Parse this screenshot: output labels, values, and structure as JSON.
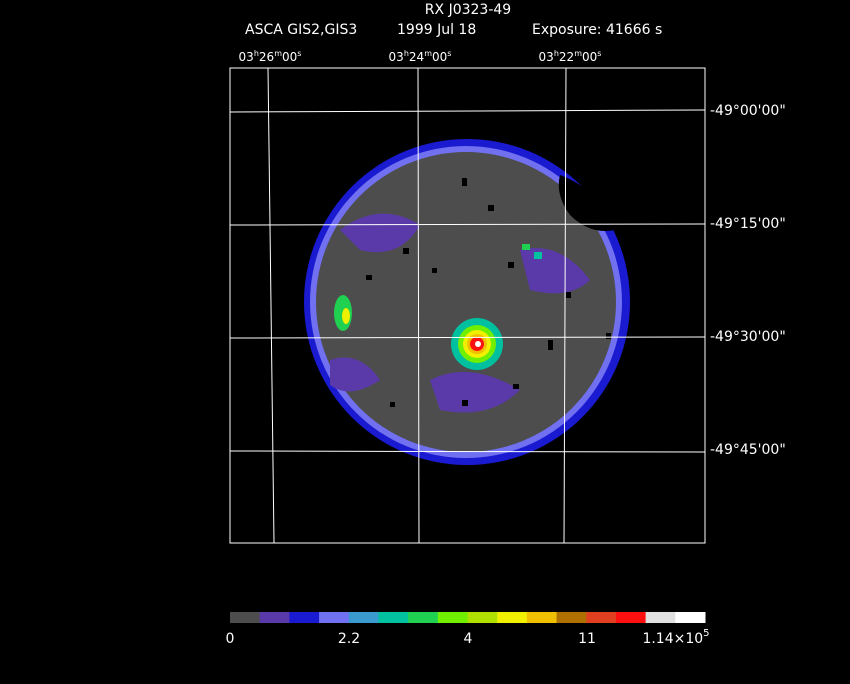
{
  "header": {
    "title": "RX J0323-49",
    "instrument": "ASCA GIS2,GIS3",
    "date": "1999 Jul 18",
    "exposure": "Exposure: 41666 s"
  },
  "ra_labels": [
    [
      "03",
      "h",
      "26",
      "m",
      "00",
      "s"
    ],
    [
      "03",
      "h",
      "24",
      "m",
      "00",
      "s"
    ],
    [
      "03",
      "h",
      "22",
      "m",
      "00",
      "s"
    ]
  ],
  "dec_labels": [
    "-49°00'00\"",
    "-49°15'00\"",
    "-49°30'00\"",
    "-49°45'00\""
  ],
  "colorbar": {
    "colors": [
      "#4d4d4d",
      "#5a3aa8",
      "#1a1ad0",
      "#7070f0",
      "#3a9ad0",
      "#00c0a0",
      "#20d050",
      "#70f000",
      "#b0e000",
      "#f0f000",
      "#f0c000",
      "#b07000",
      "#e04020",
      "#ff1010",
      "#e0e0e0",
      "#ffffff"
    ],
    "labels": [
      "0",
      "2.2",
      "4",
      "11",
      {
        "mantissa": "1.14×10",
        "exponent": "5"
      }
    ]
  }
}
